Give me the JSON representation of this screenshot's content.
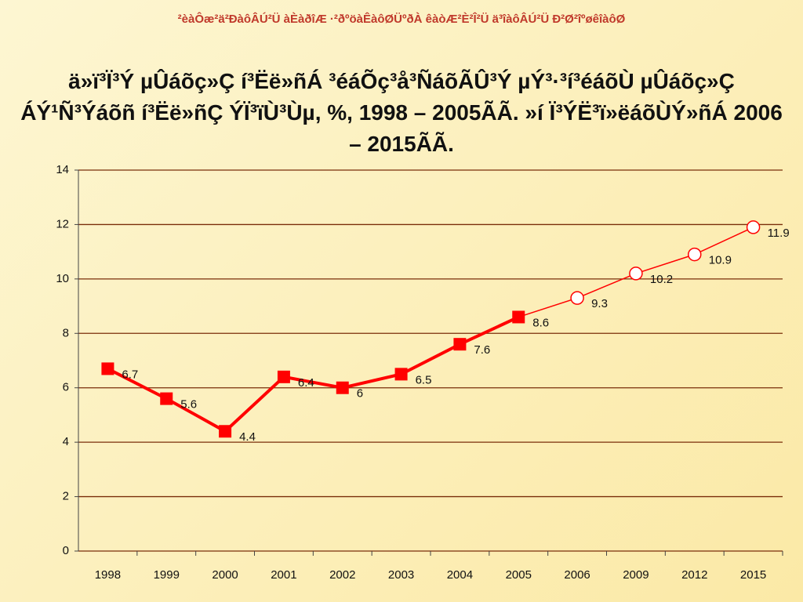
{
  "header": "²èàÔæ²ä²ÐàôÂÚ²Ü  àÈàðîÆ  ·²ðºöàÊàôØÜºðÀ  êàòÆ²È²Î²Ü  ä³îàôÂÚ²Ü  Ð²Ø²îºøêîàôØ",
  "chart_data": {
    "type": "line",
    "title": "ä»ï³Ï³Ý µÛáõç»Ç í³Ëë»ñÁ ³éáÕç³å³ÑáõÃÛ³Ý µÝ³·³í³éáõÙ µÛáõç»Ç ÁÝ¹Ñ³Ýáõñ í³Ëë»ñÇ  ÝÏ³ïÙ³Ùµ, %, 1998 – 2005ÃÃ. »í Ï³ÝË³ï»ëáõÙÝ»ñÁ 2006 – 2015ÃÃ.",
    "categories": [
      "1998",
      "1999",
      "2000",
      "2001",
      "2002",
      "2003",
      "2004",
      "2005",
      "2006",
      "2009",
      "2012",
      "2015"
    ],
    "series": [
      {
        "color": "#ff0000",
        "values": [
          6.7,
          5.6,
          4.4,
          6.4,
          6,
          6.5,
          7.6,
          8.6,
          null,
          null,
          null,
          null
        ]
      },
      {
        "color": "#ff0000",
        "values": [
          null,
          null,
          null,
          null,
          null,
          null,
          null,
          null,
          9.3,
          10.2,
          10.9,
          11.9
        ]
      }
    ],
    "ylim": [
      0,
      14
    ],
    "yticks": [
      0,
      2,
      4,
      6,
      8,
      10,
      12,
      14
    ],
    "grid": true,
    "grid_color": "#7a2e0a"
  }
}
